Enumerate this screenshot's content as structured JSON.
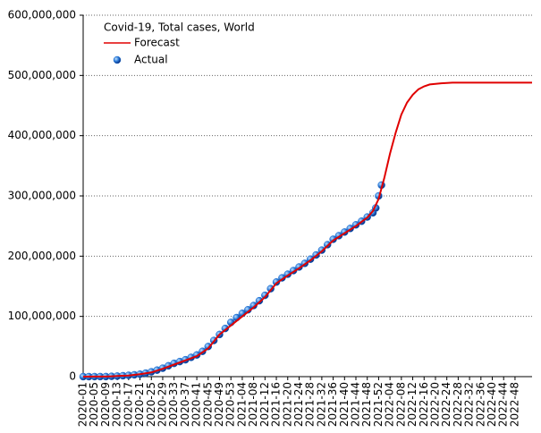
{
  "chart_data": {
    "type": "line",
    "title": "Covid-19, Total cases, World",
    "xlim": [
      0,
      158
    ],
    "ylim": [
      0,
      600000000
    ],
    "grid": true,
    "legend": "upper-left",
    "yticks": [
      0,
      {
        "value": 100000000,
        "label": "100,000,000"
      },
      {
        "value": 200000000,
        "label": "200,000,000"
      },
      {
        "value": 300000000,
        "label": "300,000,000"
      },
      {
        "value": 400000000,
        "label": "400,000,000"
      },
      {
        "value": 500000000,
        "label": "500,000,000"
      },
      {
        "value": 600000000,
        "label": "600,000,000"
      }
    ],
    "xticks": [
      {
        "value": 0,
        "label": "2020-01"
      },
      {
        "value": 4,
        "label": "2020-05"
      },
      {
        "value": 8,
        "label": "2020-09"
      },
      {
        "value": 12,
        "label": "2020-13"
      },
      {
        "value": 16,
        "label": "2020-17"
      },
      {
        "value": 20,
        "label": "2020-21"
      },
      {
        "value": 24,
        "label": "2020-25"
      },
      {
        "value": 28,
        "label": "2020-29"
      },
      {
        "value": 32,
        "label": "2020-33"
      },
      {
        "value": 36,
        "label": "2020-37"
      },
      {
        "value": 40,
        "label": "2020-41"
      },
      {
        "value": 44,
        "label": "2020-45"
      },
      {
        "value": 48,
        "label": "2020-49"
      },
      {
        "value": 52,
        "label": "2020-53"
      },
      {
        "value": 56,
        "label": "2021-04"
      },
      {
        "value": 60,
        "label": "2021-08"
      },
      {
        "value": 64,
        "label": "2021-12"
      },
      {
        "value": 68,
        "label": "2021-16"
      },
      {
        "value": 72,
        "label": "2021-20"
      },
      {
        "value": 76,
        "label": "2021-24"
      },
      {
        "value": 80,
        "label": "2021-28"
      },
      {
        "value": 84,
        "label": "2021-32"
      },
      {
        "value": 88,
        "label": "2021-36"
      },
      {
        "value": 92,
        "label": "2021-40"
      },
      {
        "value": 96,
        "label": "2021-44"
      },
      {
        "value": 100,
        "label": "2021-48"
      },
      {
        "value": 104,
        "label": "2021-52"
      },
      {
        "value": 108,
        "label": "2022-04"
      },
      {
        "value": 112,
        "label": "2022-08"
      },
      {
        "value": 116,
        "label": "2022-12"
      },
      {
        "value": 120,
        "label": "2022-16"
      },
      {
        "value": 124,
        "label": "2022-20"
      },
      {
        "value": 128,
        "label": "2022-24"
      },
      {
        "value": 132,
        "label": "2022-28"
      },
      {
        "value": 136,
        "label": "2022-32"
      },
      {
        "value": 140,
        "label": "2022-36"
      },
      {
        "value": 144,
        "label": "2022-40"
      },
      {
        "value": 148,
        "label": "2022-44"
      },
      {
        "value": 152,
        "label": "2022-48"
      }
    ],
    "series": [
      {
        "name": "Forecast",
        "type": "line",
        "color": "#e00000",
        "x": [
          0,
          4,
          8,
          12,
          16,
          20,
          24,
          28,
          32,
          36,
          40,
          44,
          48,
          52,
          56,
          60,
          64,
          68,
          72,
          76,
          80,
          84,
          88,
          92,
          96,
          100,
          102,
          104,
          106,
          108,
          110,
          112,
          114,
          116,
          118,
          120,
          122,
          124,
          126,
          130,
          140,
          158
        ],
        "values": [
          0,
          100000,
          200000,
          1000000,
          2000000,
          4000000,
          7000000,
          13000000,
          20000000,
          27000000,
          34000000,
          47000000,
          70000000,
          85000000,
          100000000,
          115000000,
          132000000,
          155000000,
          168000000,
          180000000,
          193000000,
          208000000,
          226000000,
          238000000,
          250000000,
          264000000,
          275000000,
          295000000,
          330000000,
          370000000,
          405000000,
          435000000,
          455000000,
          468000000,
          477000000,
          482000000,
          485000000,
          486000000,
          487000000,
          488000000,
          488000000,
          488000000
        ]
      },
      {
        "name": "Actual",
        "type": "scatter",
        "color": "#1f6fd0",
        "x": [
          0,
          2,
          4,
          6,
          8,
          10,
          12,
          14,
          16,
          18,
          20,
          22,
          24,
          26,
          28,
          30,
          32,
          34,
          36,
          38,
          40,
          42,
          44,
          46,
          48,
          50,
          52,
          54,
          56,
          58,
          60,
          62,
          64,
          66,
          68,
          70,
          72,
          74,
          76,
          78,
          80,
          82,
          84,
          86,
          88,
          90,
          92,
          94,
          96,
          98,
          100,
          102,
          103,
          104,
          105
        ],
        "values": [
          10000,
          20000,
          50000,
          80000,
          100000,
          500000,
          900000,
          1500000,
          2200000,
          3000000,
          4000000,
          5800000,
          8000000,
          10800000,
          14000000,
          18000000,
          22000000,
          25000000,
          28000000,
          32000000,
          36000000,
          42000000,
          50000000,
          60000000,
          70000000,
          80000000,
          90000000,
          98000000,
          105000000,
          111000000,
          118000000,
          126000000,
          135000000,
          146000000,
          157000000,
          164000000,
          170000000,
          176000000,
          182000000,
          188000000,
          195000000,
          202000000,
          210000000,
          219000000,
          228000000,
          234000000,
          240000000,
          246000000,
          252000000,
          258000000,
          265000000,
          272000000,
          280000000,
          300000000,
          318000000
        ]
      }
    ]
  }
}
